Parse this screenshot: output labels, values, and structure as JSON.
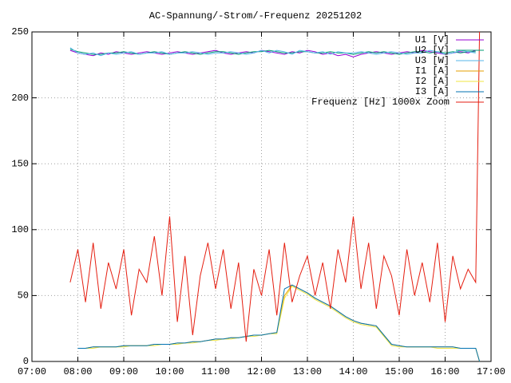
{
  "chart_data": {
    "type": "line",
    "title": "AC-Spannung/-Strom/-Frequenz 20251202",
    "xlim": [
      420,
      1020
    ],
    "xticks": [
      {
        "value": 420,
        "label": "07:00"
      },
      {
        "value": 480,
        "label": "08:00"
      },
      {
        "value": 540,
        "label": "09:00"
      },
      {
        "value": 600,
        "label": "10:00"
      },
      {
        "value": 660,
        "label": "11:00"
      },
      {
        "value": 720,
        "label": "12:00"
      },
      {
        "value": 780,
        "label": "13:00"
      },
      {
        "value": 840,
        "label": "14:00"
      },
      {
        "value": 900,
        "label": "15:00"
      },
      {
        "value": 960,
        "label": "16:00"
      },
      {
        "value": 1020,
        "label": "17:00"
      }
    ],
    "ylim": [
      0,
      250
    ],
    "yticks": [
      0,
      50,
      100,
      150,
      200,
      250
    ],
    "grid": true,
    "legend": "top-right",
    "x": [
      470,
      480,
      490,
      500,
      510,
      520,
      530,
      540,
      550,
      560,
      570,
      580,
      590,
      600,
      610,
      620,
      630,
      640,
      650,
      660,
      670,
      680,
      690,
      700,
      710,
      720,
      730,
      740,
      750,
      760,
      770,
      780,
      790,
      800,
      810,
      820,
      830,
      840,
      850,
      860,
      870,
      880,
      890,
      900,
      910,
      920,
      930,
      940,
      950,
      960,
      970,
      980,
      990,
      1000,
      1005
    ],
    "series": [
      {
        "name": "U1 [V]",
        "color": "#9400d3",
        "values": [
          236,
          234,
          233,
          232,
          234,
          233,
          235,
          234,
          233,
          234,
          235,
          234,
          233,
          234,
          235,
          234,
          233,
          234,
          235,
          236,
          234,
          233,
          234,
          235,
          234,
          236,
          235,
          234,
          233,
          235,
          234,
          236,
          235,
          233,
          234,
          232,
          233,
          231,
          233,
          234,
          235,
          234,
          233,
          234,
          235,
          234,
          236,
          235,
          234,
          233,
          234,
          235,
          234,
          236,
          null
        ]
      },
      {
        "name": "U2 [V]",
        "color": "#009e73",
        "values": [
          237,
          235,
          234,
          233,
          233,
          234,
          234,
          235,
          234,
          233,
          234,
          235,
          234,
          233,
          234,
          235,
          234,
          233,
          234,
          235,
          235,
          234,
          233,
          234,
          235,
          235,
          236,
          235,
          234,
          234,
          235,
          235,
          234,
          234,
          235,
          234,
          234,
          233,
          234,
          235,
          234,
          235,
          234,
          233,
          234,
          235,
          235,
          234,
          235,
          234,
          235,
          234,
          235,
          235,
          null
        ]
      },
      {
        "name": "U3 [W]",
        "color": "#56b4e9",
        "values": [
          238,
          234,
          233,
          234,
          232,
          234,
          233,
          234,
          235,
          233,
          234,
          234,
          235,
          233,
          234,
          234,
          235,
          234,
          233,
          234,
          234,
          235,
          234,
          233,
          234,
          236,
          234,
          236,
          235,
          233,
          236,
          235,
          234,
          235,
          233,
          235,
          234,
          234,
          235,
          234,
          233,
          234,
          235,
          234,
          233,
          234,
          234,
          236,
          235,
          233,
          234,
          236,
          235,
          234,
          null
        ]
      },
      {
        "name": "I1 [A]",
        "color": "#e69f00",
        "values": [
          null,
          10,
          10,
          11,
          11,
          11,
          11,
          12,
          12,
          12,
          12,
          13,
          13,
          13,
          14,
          14,
          15,
          15,
          16,
          17,
          17,
          18,
          18,
          19,
          20,
          20,
          21,
          22,
          50,
          58,
          55,
          52,
          48,
          45,
          42,
          38,
          34,
          31,
          29,
          28,
          27,
          20,
          13,
          12,
          11,
          11,
          11,
          11,
          11,
          11,
          11,
          10,
          10,
          10,
          0
        ]
      },
      {
        "name": "I2 [A]",
        "color": "#f0e442",
        "values": [
          null,
          10,
          10,
          10,
          11,
          11,
          11,
          11,
          12,
          12,
          12,
          12,
          13,
          13,
          13,
          14,
          14,
          15,
          16,
          16,
          17,
          17,
          18,
          19,
          19,
          20,
          21,
          21,
          48,
          57,
          54,
          51,
          47,
          44,
          41,
          37,
          33,
          30,
          28,
          27,
          26,
          19,
          12,
          11,
          11,
          11,
          11,
          11,
          10,
          10,
          10,
          10,
          10,
          10,
          0
        ]
      },
      {
        "name": "I3 [A]",
        "color": "#0072b2",
        "values": [
          null,
          10,
          10,
          11,
          11,
          11,
          11,
          12,
          12,
          12,
          12,
          13,
          13,
          13,
          14,
          14,
          15,
          15,
          16,
          17,
          17,
          18,
          18,
          19,
          20,
          20,
          21,
          22,
          55,
          58,
          55,
          52,
          48,
          45,
          42,
          38,
          34,
          31,
          29,
          28,
          27,
          20,
          13,
          12,
          11,
          11,
          11,
          11,
          11,
          11,
          11,
          10,
          10,
          10,
          0
        ]
      },
      {
        "name": "Frequenz [Hz] 1000x Zoom",
        "color": "#e51e10",
        "values": [
          60,
          85,
          45,
          90,
          40,
          75,
          55,
          85,
          35,
          70,
          60,
          95,
          50,
          110,
          30,
          80,
          20,
          65,
          90,
          55,
          85,
          40,
          75,
          15,
          70,
          50,
          85,
          35,
          90,
          45,
          65,
          80,
          50,
          75,
          40,
          85,
          60,
          110,
          55,
          90,
          40,
          80,
          65,
          35,
          85,
          50,
          75,
          45,
          90,
          30,
          80,
          55,
          70,
          60,
          250
        ]
      }
    ]
  }
}
